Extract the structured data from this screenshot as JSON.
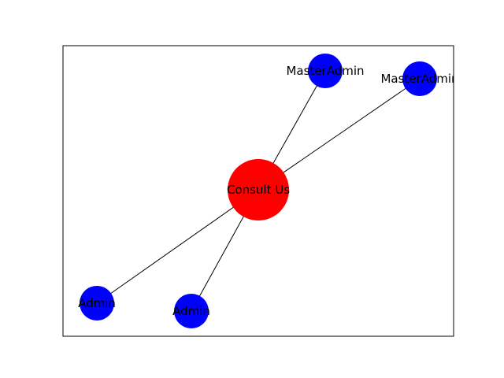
{
  "graph": {
    "colors": {
      "center": "#ff0000",
      "leaf": "#0000ff",
      "edge": "#000000",
      "frame": "#000000",
      "background": "#ffffff"
    },
    "nodes": [
      {
        "id": "consult-us",
        "label": "Consult Us",
        "role": "center"
      },
      {
        "id": "masteradmin-1",
        "label": "MasterAdmin",
        "role": "leaf"
      },
      {
        "id": "masteradmin-2",
        "label": "MasterAdmin",
        "role": "leaf"
      },
      {
        "id": "admin-1",
        "label": "Admin",
        "role": "leaf"
      },
      {
        "id": "admin-2",
        "label": "Admin",
        "role": "leaf"
      }
    ],
    "edges": [
      {
        "from": "consult-us",
        "to": "masteradmin-1"
      },
      {
        "from": "consult-us",
        "to": "masteradmin-2"
      },
      {
        "from": "consult-us",
        "to": "admin-1"
      },
      {
        "from": "consult-us",
        "to": "admin-2"
      }
    ]
  }
}
